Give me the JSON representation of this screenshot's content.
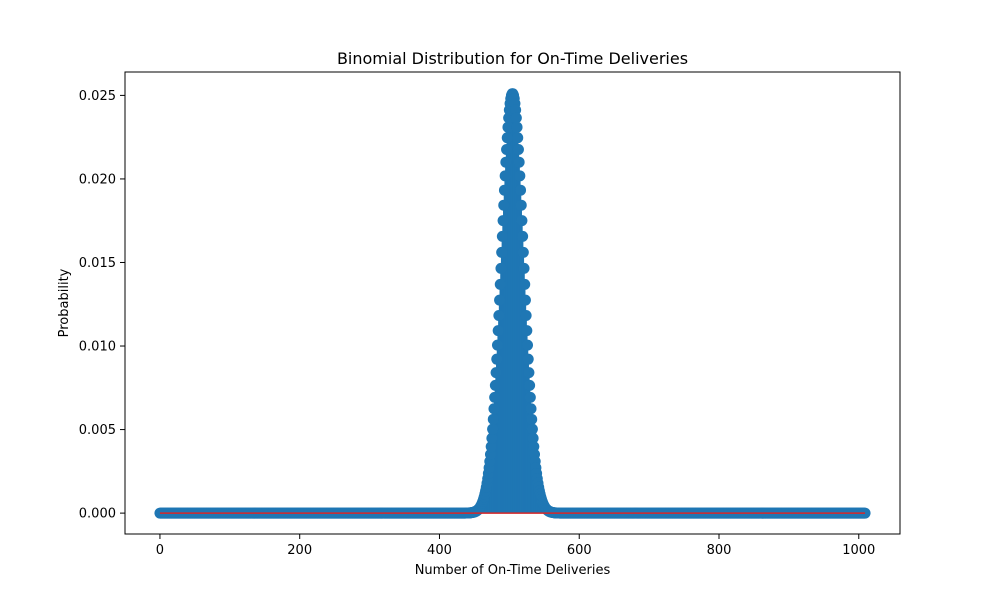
{
  "chart_data": {
    "type": "stem",
    "title": "Binomial Distribution for On-Time Deliveries",
    "xlabel": "Number of On-Time Deliveries",
    "ylabel": "Probability",
    "distribution": {
      "n": 1009,
      "p": 0.5
    },
    "x_range": [
      0,
      1009
    ],
    "xlim": [
      -50,
      1059
    ],
    "ylim": [
      -0.00125,
      0.0264
    ],
    "xticks": [
      "0",
      "200",
      "400",
      "600",
      "800",
      "1000"
    ],
    "yticks": [
      "0.000",
      "0.005",
      "0.010",
      "0.015",
      "0.020",
      "0.025"
    ],
    "colors": {
      "marker": "#1f77b4",
      "stem": "#1f77b4",
      "baseline": "#d62728"
    },
    "grid": false
  }
}
